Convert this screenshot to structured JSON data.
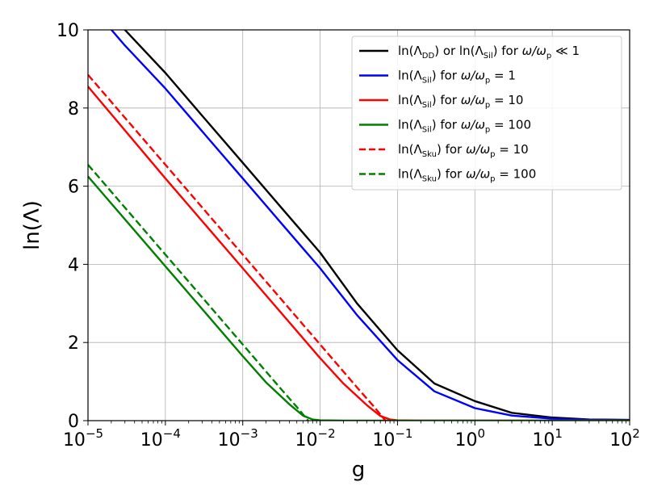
{
  "chart_data": {
    "type": "line",
    "xlabel": "g",
    "ylabel": "ln(Λ)",
    "xscale": "log",
    "xlim": [
      1e-05,
      100
    ],
    "ylim": [
      0,
      10
    ],
    "grid": true,
    "legend_position": "top-right",
    "x_ticks": [
      {
        "base": "10",
        "exp": "−5",
        "value": 1e-05
      },
      {
        "base": "10",
        "exp": "−4",
        "value": 0.0001
      },
      {
        "base": "10",
        "exp": "−3",
        "value": 0.001
      },
      {
        "base": "10",
        "exp": "−2",
        "value": 0.01
      },
      {
        "base": "10",
        "exp": "−1",
        "value": 0.1
      },
      {
        "base": "10",
        "exp": "0",
        "value": 1
      },
      {
        "base": "10",
        "exp": "1",
        "value": 10
      },
      {
        "base": "10",
        "exp": "2",
        "value": 100
      }
    ],
    "y_ticks": [
      "0",
      "2",
      "4",
      "6",
      "8",
      "10"
    ],
    "series": [
      {
        "name": "ln(Λ_DD) or ln(Λ_Sil) for ω/ω_p ≪ 1",
        "label_parts": [
          "ln(Λ",
          "DD",
          ") or ln(Λ",
          "Sil",
          ") for ",
          "ω/ω",
          "p",
          " ≪ 1"
        ],
        "color": "#000000",
        "dash": "solid",
        "x": [
          1e-05,
          3e-05,
          0.0001,
          0.0003,
          0.001,
          0.003,
          0.01,
          0.03,
          0.1,
          0.3,
          1,
          3,
          10,
          30,
          100
        ],
        "y": [
          11.04,
          10.0,
          8.9,
          7.8,
          6.6,
          5.5,
          4.3,
          3.0,
          1.8,
          0.95,
          0.5,
          0.2,
          0.08,
          0.03,
          0.02
        ]
      },
      {
        "name": "ln(Λ_Sil) for ω/ω_p = 1",
        "label_parts": [
          "ln(Λ",
          "Sil",
          ") for ",
          "ω/ω",
          "p",
          " = 1"
        ],
        "color": "#0000ff",
        "dash": "solid",
        "x": [
          1e-05,
          3e-05,
          0.0001,
          0.0003,
          0.001,
          0.003,
          0.01,
          0.03,
          0.1,
          0.3,
          1,
          3,
          10,
          30,
          100
        ],
        "y": [
          10.7,
          9.6,
          8.5,
          7.4,
          6.2,
          5.1,
          3.9,
          2.7,
          1.55,
          0.75,
          0.32,
          0.13,
          0.05,
          0.02,
          0.01
        ]
      },
      {
        "name": "ln(Λ_Sil) for ω/ω_p = 10",
        "label_parts": [
          "ln(Λ",
          "Sil",
          ") for ",
          "ω/ω",
          "p",
          " = 10"
        ],
        "color": "#ff0000",
        "dash": "solid",
        "x": [
          1e-05,
          0.0001,
          0.001,
          0.01,
          0.02,
          0.04,
          0.06,
          0.08,
          0.1,
          0.2,
          1,
          10,
          100
        ],
        "y": [
          8.55,
          6.2,
          3.9,
          1.6,
          0.95,
          0.4,
          0.12,
          0.03,
          0.01,
          0.0,
          0.0,
          0.0,
          0.0
        ]
      },
      {
        "name": "ln(Λ_Sil) for ω/ω_p = 100",
        "label_parts": [
          "ln(Λ",
          "Sil",
          ") for ",
          "ω/ω",
          "p",
          " = 100"
        ],
        "color": "#008000",
        "dash": "solid",
        "x": [
          1e-05,
          0.0001,
          0.001,
          0.002,
          0.004,
          0.006,
          0.008,
          0.01,
          0.02,
          0.1,
          1,
          10,
          100
        ],
        "y": [
          6.25,
          3.95,
          1.65,
          0.98,
          0.42,
          0.13,
          0.03,
          0.01,
          0.0,
          0.0,
          0.0,
          0.0,
          0.0
        ]
      },
      {
        "name": "ln(Λ_Sku) for ω/ω_p = 10",
        "label_parts": [
          "ln(Λ",
          "Sku",
          ") for ",
          "ω/ω",
          "p",
          " = 10"
        ],
        "color": "#ff0000",
        "dash": "dashed",
        "x": [
          1e-05,
          0.0001,
          0.001,
          0.01,
          0.03,
          0.05,
          0.07
        ],
        "y": [
          8.85,
          6.55,
          4.25,
          1.95,
          0.85,
          0.35,
          0.0
        ]
      },
      {
        "name": "ln(Λ_Sku) for ω/ω_p = 100",
        "label_parts": [
          "ln(Λ",
          "Sku",
          ") for ",
          "ω/ω",
          "p",
          " = 100"
        ],
        "color": "#008000",
        "dash": "dashed",
        "x": [
          1e-05,
          0.0001,
          0.001,
          0.003,
          0.005,
          0.007
        ],
        "y": [
          6.55,
          4.25,
          1.95,
          0.85,
          0.35,
          0.0
        ]
      }
    ]
  }
}
